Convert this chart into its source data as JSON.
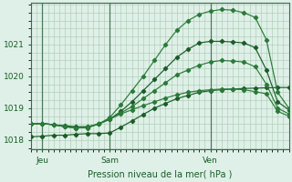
{
  "xlabel": "Pression niveau de la mer( hPa )",
  "bg_color": "#dff0e8",
  "grid_color": "#a8c8b0",
  "vline_color": "#4a7a5a",
  "line_colors": [
    "#1a5c28",
    "#1a5c28",
    "#2a7a38",
    "#2a7a38",
    "#2a7a38"
  ],
  "xlim": [
    0,
    46
  ],
  "ylim": [
    1017.7,
    1022.3
  ],
  "yticks": [
    1018,
    1019,
    1020,
    1021
  ],
  "day_positions": [
    2,
    14,
    32
  ],
  "day_labels": [
    "Jeu",
    "Sam",
    "Ven"
  ],
  "series": [
    [
      1018.1,
      1018.12,
      1018.15,
      1018.15,
      1018.18,
      1018.2,
      1018.2,
      1018.22,
      1018.4,
      1018.6,
      1018.8,
      1019.0,
      1019.15,
      1019.3,
      1019.4,
      1019.5,
      1019.55,
      1019.58,
      1019.6,
      1019.62,
      1019.63,
      1019.64,
      1019.65,
      1019.65
    ],
    [
      1018.5,
      1018.52,
      1018.48,
      1018.45,
      1018.42,
      1018.42,
      1018.5,
      1018.65,
      1018.9,
      1019.2,
      1019.55,
      1019.9,
      1020.25,
      1020.6,
      1020.85,
      1021.05,
      1021.1,
      1021.1,
      1021.08,
      1021.05,
      1020.9,
      1020.2,
      1019.2,
      1018.95
    ],
    [
      1018.5,
      1018.52,
      1018.48,
      1018.42,
      1018.38,
      1018.38,
      1018.5,
      1018.7,
      1019.1,
      1019.55,
      1020.0,
      1020.5,
      1021.0,
      1021.45,
      1021.75,
      1021.95,
      1022.05,
      1022.1,
      1022.08,
      1022.0,
      1021.85,
      1021.15,
      1019.5,
      1019.0
    ],
    [
      1018.5,
      1018.52,
      1018.48,
      1018.42,
      1018.38,
      1018.4,
      1018.5,
      1018.65,
      1018.85,
      1019.05,
      1019.3,
      1019.55,
      1019.8,
      1020.05,
      1020.2,
      1020.35,
      1020.45,
      1020.5,
      1020.48,
      1020.45,
      1020.3,
      1019.75,
      1019.0,
      1018.82
    ],
    [
      1018.5,
      1018.52,
      1018.48,
      1018.42,
      1018.38,
      1018.4,
      1018.5,
      1018.65,
      1018.82,
      1018.95,
      1019.08,
      1019.2,
      1019.32,
      1019.42,
      1019.5,
      1019.55,
      1019.58,
      1019.6,
      1019.6,
      1019.58,
      1019.52,
      1019.45,
      1018.9,
      1018.75
    ]
  ]
}
